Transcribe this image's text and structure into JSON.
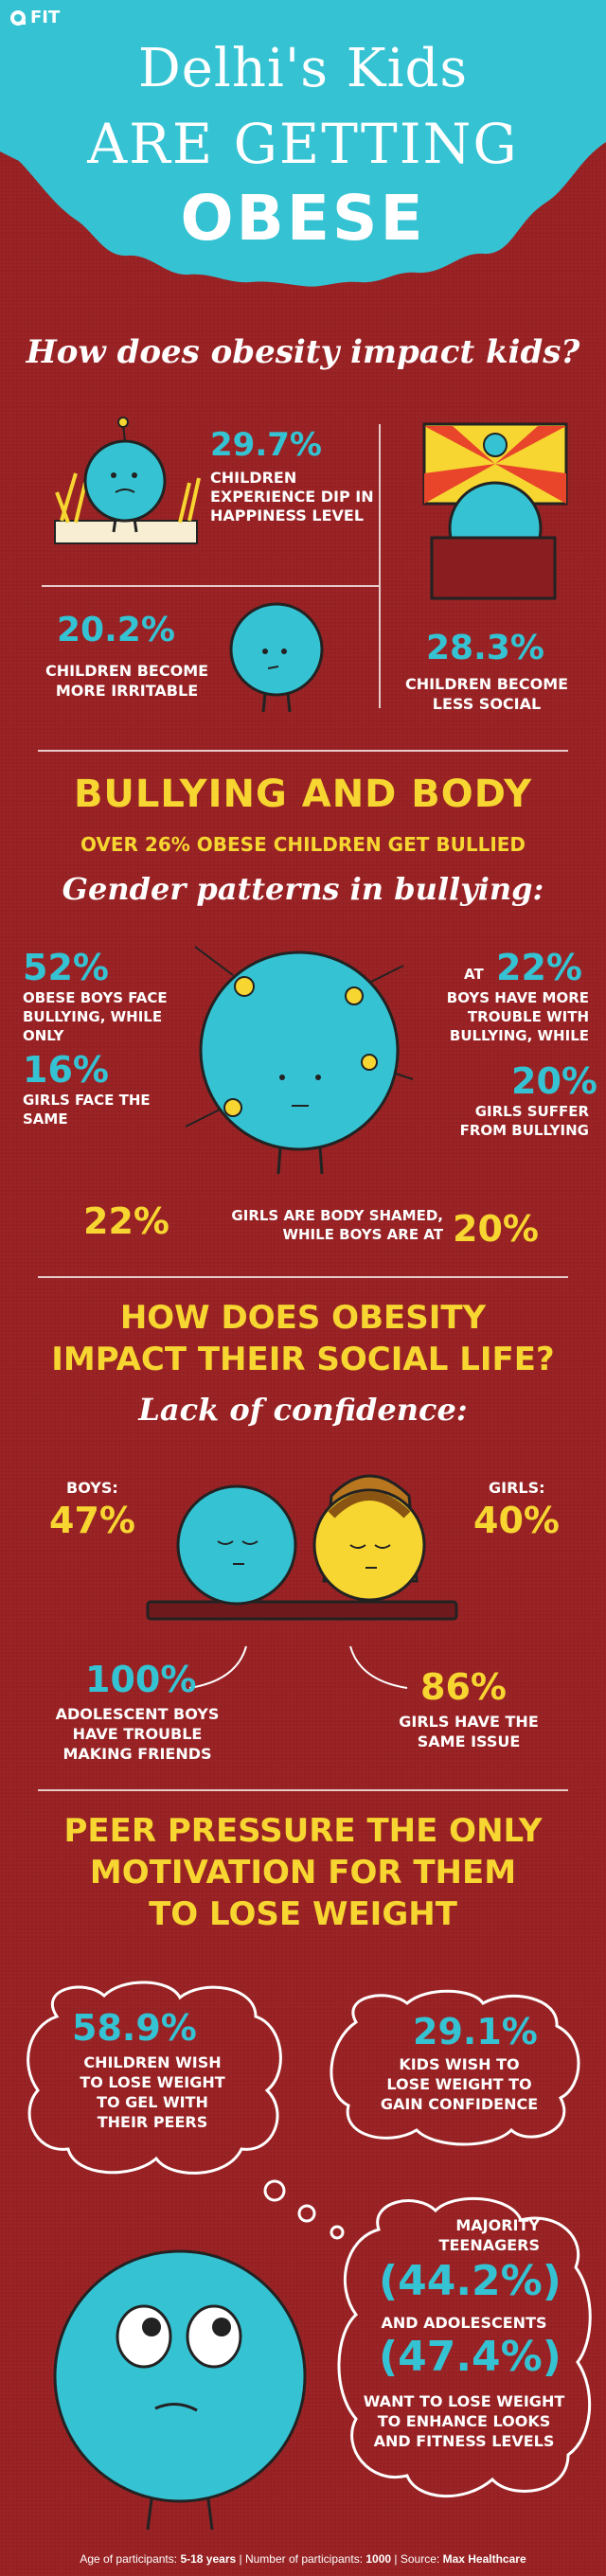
{
  "brand": {
    "logo": "FIT"
  },
  "header": {
    "line1": "Delhi's Kids",
    "line2": "ARE GETTING",
    "line3": "OBESE"
  },
  "impact": {
    "question": "How does obesity impact kids?",
    "stat1": {
      "value": "29.7%",
      "text": "CHILDREN EXPERIENCE DIP IN HAPPINESS LEVEL"
    },
    "stat2": {
      "value": "20.2%",
      "text": "CHILDREN BECOME MORE IRRITABLE"
    },
    "stat3": {
      "value": "28.3%",
      "text": "CHILDREN BECOME LESS SOCIAL"
    }
  },
  "bullying": {
    "title": "BULLYING AND BODY",
    "subtitle": "OVER 26% OBESE CHILDREN GET BULLIED",
    "gender_heading": "Gender patterns in bullying:",
    "left_value1": "52%",
    "left_text1": "OBESE BOYS FACE BULLYING, WHILE ONLY",
    "left_value2": "16%",
    "left_text2": "GIRLS FACE THE SAME",
    "right_prefix": "AT",
    "right_value1": "22%",
    "right_text1": "BOYS HAVE MORE TROUBLE WITH BULLYING, WHILE",
    "right_value2": "20%",
    "right_text2": "GIRLS SUFFER FROM BULLYING",
    "shamed_value1": "22%",
    "shamed_text": "GIRLS ARE BODY SHAMED, WHILE BOYS ARE AT",
    "shamed_value2": "20%"
  },
  "social": {
    "title_line1": "HOW DOES OBESITY",
    "title_line2": "IMPACT THEIR SOCIAL LIFE?",
    "confidence_heading": "Lack of confidence:",
    "boys_label": "BOYS:",
    "boys_value": "47%",
    "girls_label": "GIRLS:",
    "girls_value": "40%",
    "friends_value": "100%",
    "friends_text": "ADOLESCENT BOYS HAVE TROUBLE MAKING FRIENDS",
    "girls_issue_value": "86%",
    "girls_issue_text": "GIRLS HAVE THE SAME ISSUE"
  },
  "peer": {
    "title_line1": "PEER PRESSURE THE ONLY",
    "title_line2": "MOTIVATION FOR THEM",
    "title_line3": "TO LOSE WEIGHT",
    "bubble1_value": "58.9%",
    "bubble1_text": "CHILDREN WISH TO LOSE WEIGHT TO GEL WITH THEIR PEERS",
    "bubble2_value": "29.1%",
    "bubble2_text": "KIDS WISH TO LOSE WEIGHT TO GAIN CONFIDENCE",
    "bubble3_intro": "MAJORITY TEENAGERS",
    "bubble3_value1": "(44.2%)",
    "bubble3_mid": "AND ADOLESCENTS",
    "bubble3_value2": "(47.4%)",
    "bubble3_text": "WANT TO LOSE WEIGHT TO ENHANCE LOOKS AND FITNESS LEVELS"
  },
  "footer": {
    "age_label": "Age of participants:",
    "age_value": "5-18 years",
    "participants_label": "Number of participants:",
    "participants_value": "1000",
    "source_label": "Source:",
    "source_value": "Max Healthcare"
  },
  "colors": {
    "background": "#9b2325",
    "cyan": "#35c3d3",
    "yellow": "#f7d631",
    "white": "#ffffff"
  }
}
